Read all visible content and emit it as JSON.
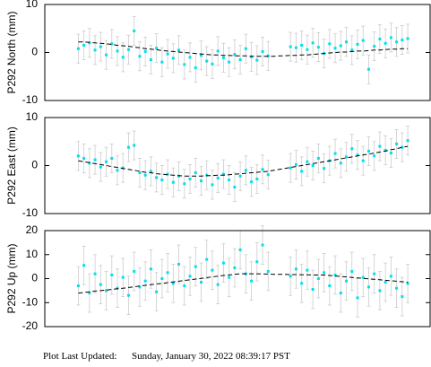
{
  "chart_data": [
    {
      "type": "scatter",
      "y_label": "P292 North (mm)",
      "x": [
        0,
        1,
        2,
        3,
        4,
        5,
        6,
        7,
        8,
        9,
        10,
        11,
        12,
        13,
        14,
        15,
        16,
        17,
        18,
        19,
        20,
        21,
        22,
        23,
        24,
        25,
        26,
        27,
        28,
        29,
        30,
        31,
        32,
        33,
        34,
        35,
        36,
        37,
        38,
        39,
        40,
        41,
        42,
        43,
        44,
        45,
        46,
        47,
        48,
        49,
        50,
        51,
        52,
        53,
        54,
        55,
        56,
        57,
        58,
        59
      ],
      "values": [
        0.8,
        1.5,
        2.0,
        0.5,
        1.2,
        -0.5,
        1.8,
        0.3,
        -1.0,
        0.6,
        4.5,
        -0.8,
        0.2,
        -1.5,
        0.9,
        -2.0,
        -0.3,
        -1.2,
        0.5,
        -2.5,
        -1.0,
        -3.2,
        -0.6,
        -1.8,
        -2.4,
        0.3,
        -1.1,
        -2.0,
        -0.4,
        -1.5,
        0.8,
        -0.9,
        -1.6,
        0.2,
        -0.7,
        null,
        null,
        null,
        1.2,
        1.0,
        1.5,
        0.6,
        2.0,
        1.1,
        -0.2,
        1.8,
        0.9,
        1.4,
        2.2,
        0.5,
        1.7,
        2.5,
        -3.5,
        1.3,
        2.8,
        1.9,
        3.1,
        2.2,
        2.6,
        2.9
      ],
      "error": 3,
      "color": "#00e0ee",
      "error_color": "#cccccc",
      "trend": [
        2.2,
        2.2,
        2.1,
        2.0,
        1.9,
        1.8,
        1.7,
        1.5,
        1.4,
        1.3,
        1.1,
        1.0,
        0.8,
        0.7,
        0.6,
        0.4,
        0.3,
        0.2,
        0.1,
        0.0,
        -0.1,
        -0.2,
        -0.3,
        -0.4,
        -0.5,
        -0.5,
        -0.6,
        -0.6,
        -0.7,
        -0.7,
        -0.7,
        -0.8,
        -0.8,
        -0.8,
        -0.8,
        -0.8,
        -0.7,
        -0.7,
        -0.6,
        -0.6,
        -0.5,
        -0.5,
        -0.4,
        -0.3,
        -0.2,
        -0.1,
        0.0,
        0.1,
        0.1,
        0.2,
        0.3,
        0.3,
        0.4,
        0.5,
        0.5,
        0.6,
        0.7,
        0.7,
        0.8,
        0.8
      ],
      "trend_color": "#000000",
      "xlim": [
        -6,
        63
      ],
      "ylim": [
        -10,
        10
      ],
      "yticks": [
        -10,
        0,
        10
      ]
    },
    {
      "type": "scatter",
      "y_label": "P292 East (mm)",
      "x": [
        0,
        1,
        2,
        3,
        4,
        5,
        6,
        7,
        8,
        9,
        10,
        11,
        12,
        13,
        14,
        15,
        16,
        17,
        18,
        19,
        20,
        21,
        22,
        23,
        24,
        25,
        26,
        27,
        28,
        29,
        30,
        31,
        32,
        33,
        34,
        35,
        36,
        37,
        38,
        39,
        40,
        41,
        42,
        43,
        44,
        45,
        46,
        47,
        48,
        49,
        50,
        51,
        52,
        53,
        54,
        55,
        56,
        57,
        58,
        59
      ],
      "values": [
        2.0,
        1.5,
        0.5,
        1.2,
        -0.3,
        0.8,
        1.5,
        -1.0,
        -0.5,
        3.8,
        4.2,
        -1.5,
        -2.0,
        -1.2,
        -2.5,
        -3.0,
        -1.8,
        -3.5,
        -2.2,
        -3.8,
        -2.8,
        -1.5,
        -3.2,
        -2.0,
        -4.0,
        -2.6,
        -1.8,
        -3.0,
        -4.5,
        -2.2,
        -1.0,
        -3.4,
        -2.8,
        -0.8,
        -1.9,
        null,
        null,
        null,
        -0.5,
        0.2,
        -1.2,
        0.8,
        0.0,
        1.5,
        -0.6,
        1.0,
        2.5,
        0.5,
        1.8,
        3.5,
        2.2,
        1.0,
        3.0,
        2.0,
        4.0,
        3.2,
        2.6,
        4.5,
        3.8,
        5.2
      ],
      "error": 3,
      "color": "#00e0ee",
      "error_color": "#cccccc",
      "trend": [
        1.0,
        0.8,
        0.6,
        0.4,
        0.2,
        0.0,
        -0.2,
        -0.4,
        -0.6,
        -0.8,
        -1.0,
        -1.2,
        -1.4,
        -1.5,
        -1.7,
        -1.8,
        -1.9,
        -2.0,
        -2.1,
        -2.2,
        -2.2,
        -2.2,
        -2.2,
        -2.1,
        -2.1,
        -2.0,
        -2.0,
        -1.9,
        -1.8,
        -1.7,
        -1.6,
        -1.5,
        -1.4,
        -1.3,
        -1.2,
        -1.0,
        -0.8,
        -0.6,
        -0.4,
        -0.2,
        0.0,
        0.2,
        0.4,
        0.6,
        0.8,
        1.0,
        1.2,
        1.4,
        1.6,
        1.8,
        2.0,
        2.2,
        2.4,
        2.6,
        2.8,
        3.0,
        3.3,
        3.5,
        3.8,
        4.0
      ],
      "trend_color": "#000000",
      "xlim": [
        -6,
        63
      ],
      "ylim": [
        -10,
        10
      ],
      "yticks": [
        -10,
        0,
        10
      ]
    },
    {
      "type": "scatter",
      "y_label": "P292 Up (mm)",
      "x": [
        0,
        1,
        2,
        3,
        4,
        5,
        6,
        7,
        8,
        9,
        10,
        11,
        12,
        13,
        14,
        15,
        16,
        17,
        18,
        19,
        20,
        21,
        22,
        23,
        24,
        25,
        26,
        27,
        28,
        29,
        30,
        31,
        32,
        33,
        34,
        35,
        36,
        37,
        38,
        39,
        40,
        41,
        42,
        43,
        44,
        45,
        46,
        47,
        48,
        49,
        50,
        51,
        52,
        53,
        54,
        55,
        56,
        57,
        58,
        59
      ],
      "values": [
        -3.0,
        5.5,
        -6.0,
        2.0,
        -2.5,
        -5.0,
        1.5,
        -4.0,
        0.5,
        -7.0,
        3.0,
        -3.5,
        -1.0,
        4.0,
        -5.5,
        0.0,
        2.5,
        -2.0,
        6.0,
        -3.0,
        1.0,
        5.0,
        -1.5,
        8.0,
        3.5,
        -2.5,
        6.5,
        0.5,
        4.5,
        12.0,
        2.0,
        -1.0,
        7.0,
        14.0,
        3.0,
        null,
        null,
        null,
        1.0,
        4.0,
        -2.0,
        3.5,
        -4.5,
        0.0,
        2.5,
        -3.0,
        1.5,
        -6.0,
        -1.0,
        3.0,
        -8.0,
        0.5,
        -3.5,
        2.0,
        -5.0,
        -1.5,
        1.0,
        -4.0,
        -7.5,
        -2.0
      ],
      "error": 8,
      "color": "#00e0ee",
      "error_color": "#cccccc",
      "trend": [
        -6.0,
        -5.8,
        -5.5,
        -5.2,
        -5.0,
        -4.8,
        -4.5,
        -4.2,
        -4.0,
        -3.7,
        -3.4,
        -3.1,
        -2.8,
        -2.5,
        -2.2,
        -2.0,
        -1.7,
        -1.4,
        -1.1,
        -0.8,
        -0.5,
        -0.2,
        0.1,
        0.4,
        0.7,
        1.0,
        1.3,
        1.5,
        1.8,
        2.0,
        2.0,
        2.0,
        2.0,
        1.9,
        1.9,
        1.8,
        1.8,
        1.8,
        1.7,
        1.7,
        1.6,
        1.6,
        1.5,
        1.5,
        1.5,
        1.3,
        1.1,
        0.9,
        0.7,
        0.5,
        0.3,
        0.1,
        -0.1,
        -0.3,
        -0.5,
        -0.7,
        -0.9,
        -1.1,
        -1.3,
        -1.5
      ],
      "trend_color": "#000000",
      "xlim": [
        -6,
        63
      ],
      "ylim": [
        -20,
        20
      ],
      "yticks": [
        -20,
        -10,
        0,
        10,
        20
      ]
    }
  ],
  "footer": {
    "label": "Plot Last Updated:",
    "text": "Sunday, January 30, 2022 08:39:17 PST"
  }
}
